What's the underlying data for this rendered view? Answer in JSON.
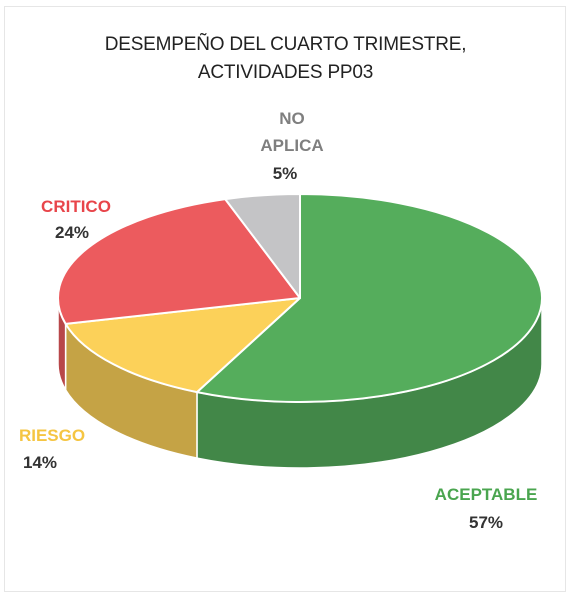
{
  "chart_data": {
    "type": "pie",
    "title": [
      "DESEMPEÑO DEL CUARTO TRIMESTRE,",
      "ACTIVIDADES PP03"
    ],
    "slices": [
      {
        "label": "ACEPTABLE",
        "value": 57,
        "display": "57%",
        "color": "#55ad5c",
        "label_color": "#4aa54f"
      },
      {
        "label": "RIESGO",
        "value": 14,
        "display": "14%",
        "color": "#fcd159",
        "label_color": "#f5c542"
      },
      {
        "label": "CRITICO",
        "value": 24,
        "display": "24%",
        "color": "#ec5b5e",
        "label_color": "#e8454a"
      },
      {
        "label": "NO APLICA",
        "label_lines": [
          "NO",
          "APLICA"
        ],
        "value": 5,
        "display": "5%",
        "color": "#c4c4c6",
        "label_color": "#7f7f7f"
      }
    ],
    "legend": "none",
    "style": "3d"
  }
}
